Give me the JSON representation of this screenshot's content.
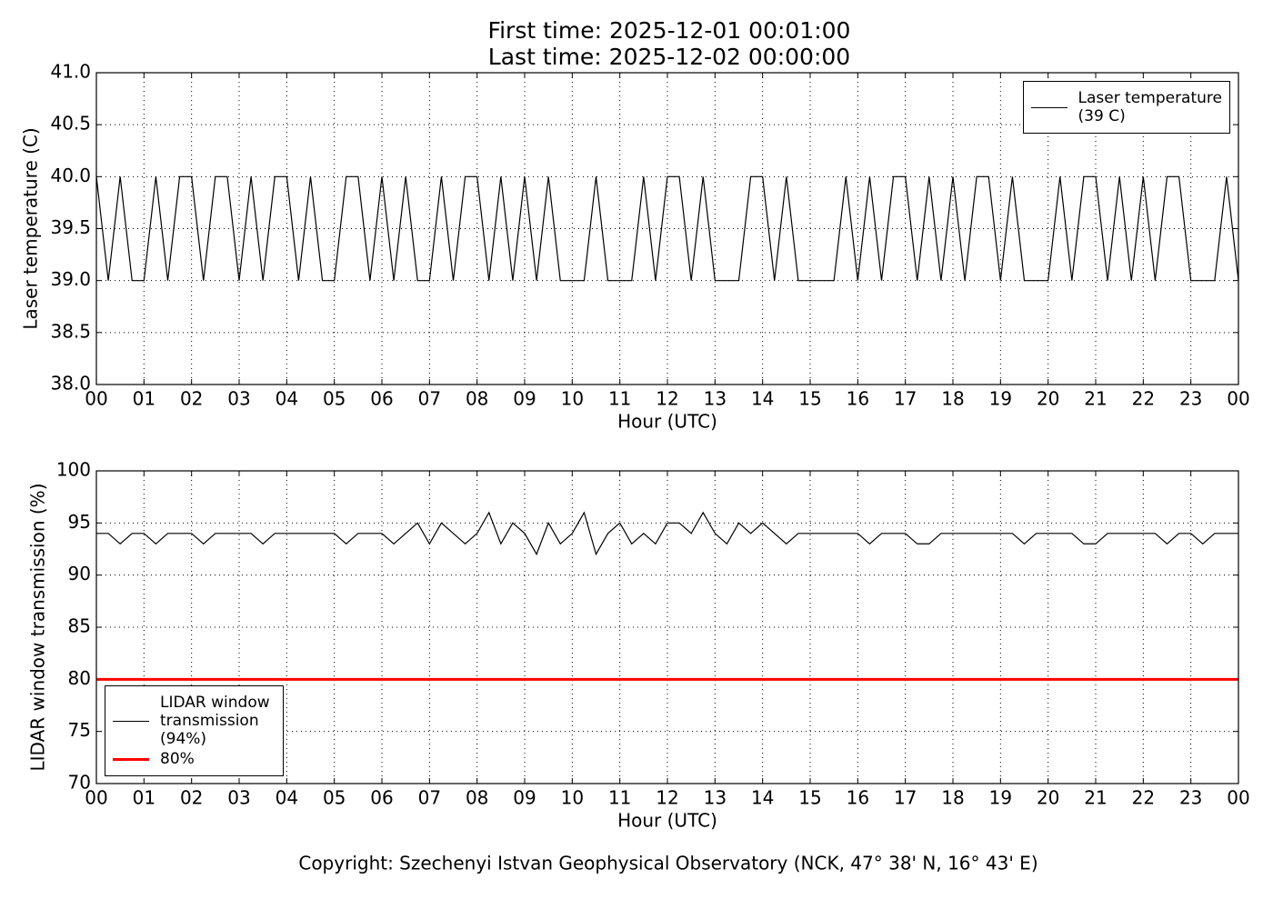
{
  "header": {
    "first_time": "First time: 2025-12-01 00:01:00",
    "last_time": "Last time: 2025-12-02 00:00:00"
  },
  "footer": {
    "copyright": "Copyright: Szechenyi Istvan Geophysical Observatory (NCK, 47° 38' N, 16° 43' E)"
  },
  "chart_data": [
    {
      "type": "line",
      "y_label": "Laser temperature (C)",
      "x_label": "Hour (UTC)",
      "grid": true,
      "legend": "upper right",
      "xlim": [
        0,
        24
      ],
      "ylim": [
        38,
        41
      ],
      "xticks": [
        {
          "value": 0,
          "label": "00"
        },
        {
          "value": 1,
          "label": "01"
        },
        {
          "value": 2,
          "label": "02"
        },
        {
          "value": 3,
          "label": "03"
        },
        {
          "value": 4,
          "label": "04"
        },
        {
          "value": 5,
          "label": "05"
        },
        {
          "value": 6,
          "label": "06"
        },
        {
          "value": 7,
          "label": "07"
        },
        {
          "value": 8,
          "label": "08"
        },
        {
          "value": 9,
          "label": "09"
        },
        {
          "value": 10,
          "label": "10"
        },
        {
          "value": 11,
          "label": "11"
        },
        {
          "value": 12,
          "label": "12"
        },
        {
          "value": 13,
          "label": "13"
        },
        {
          "value": 14,
          "label": "14"
        },
        {
          "value": 15,
          "label": "15"
        },
        {
          "value": 16,
          "label": "16"
        },
        {
          "value": 17,
          "label": "17"
        },
        {
          "value": 18,
          "label": "18"
        },
        {
          "value": 19,
          "label": "19"
        },
        {
          "value": 20,
          "label": "20"
        },
        {
          "value": 21,
          "label": "21"
        },
        {
          "value": 22,
          "label": "22"
        },
        {
          "value": 23,
          "label": "23"
        },
        {
          "value": 24,
          "label": "00"
        }
      ],
      "yticks": [
        {
          "value": 38,
          "label": "38.0"
        },
        38.5,
        {
          "value": 39,
          "label": "39.0"
        },
        39.5,
        {
          "value": 40,
          "label": "40.0"
        },
        40.5,
        {
          "value": 41,
          "label": "41.0"
        }
      ],
      "x": [
        0,
        0.25,
        0.5,
        0.75,
        1,
        1.25,
        1.5,
        1.75,
        2,
        2.25,
        2.5,
        2.75,
        3,
        3.25,
        3.5,
        3.75,
        4,
        4.25,
        4.5,
        4.75,
        5,
        5.25,
        5.5,
        5.75,
        6,
        6.25,
        6.5,
        6.75,
        7,
        7.25,
        7.5,
        7.75,
        8,
        8.25,
        8.5,
        8.75,
        9,
        9.25,
        9.5,
        9.75,
        10,
        10.25,
        10.5,
        10.75,
        11,
        11.25,
        11.5,
        11.75,
        12,
        12.25,
        12.5,
        12.75,
        13,
        13.25,
        13.5,
        13.75,
        14,
        14.25,
        14.5,
        14.75,
        15,
        15.25,
        15.5,
        15.75,
        16,
        16.25,
        16.5,
        16.75,
        17,
        17.25,
        17.5,
        17.75,
        18,
        18.25,
        18.5,
        18.75,
        19,
        19.25,
        19.5,
        19.75,
        20,
        20.25,
        20.5,
        20.75,
        21,
        21.25,
        21.5,
        21.75,
        22,
        22.25,
        22.5,
        22.75,
        23,
        23.25,
        23.5,
        23.75,
        24
      ],
      "series": [
        {
          "name": "Laser temperature\n(39 C)",
          "color": "#000000",
          "values": [
            40,
            39,
            40,
            39,
            39,
            40,
            39,
            40,
            40,
            39,
            40,
            40,
            39,
            40,
            39,
            40,
            40,
            39,
            40,
            39,
            39,
            40,
            40,
            39,
            40,
            39,
            40,
            39,
            39,
            40,
            39,
            40,
            40,
            39,
            40,
            39,
            40,
            39,
            40,
            39,
            39,
            39,
            40,
            39,
            39,
            39,
            40,
            39,
            40,
            40,
            39,
            40,
            39,
            39,
            39,
            40,
            40,
            39,
            40,
            39,
            39,
            39,
            39,
            40,
            39,
            40,
            39,
            40,
            40,
            39,
            40,
            39,
            40,
            39,
            40,
            40,
            39,
            40,
            39,
            39,
            39,
            40,
            39,
            40,
            40,
            39,
            40,
            39,
            40,
            39,
            40,
            40,
            39,
            39,
            39,
            40,
            39
          ]
        }
      ]
    },
    {
      "type": "line",
      "y_label": "LIDAR window transmission (%)",
      "x_label": "Hour (UTC)",
      "grid": true,
      "legend": "lower left",
      "xlim": [
        0,
        24
      ],
      "ylim": [
        70,
        100
      ],
      "xticks": [
        {
          "value": 0,
          "label": "00"
        },
        {
          "value": 1,
          "label": "01"
        },
        {
          "value": 2,
          "label": "02"
        },
        {
          "value": 3,
          "label": "03"
        },
        {
          "value": 4,
          "label": "04"
        },
        {
          "value": 5,
          "label": "05"
        },
        {
          "value": 6,
          "label": "06"
        },
        {
          "value": 7,
          "label": "07"
        },
        {
          "value": 8,
          "label": "08"
        },
        {
          "value": 9,
          "label": "09"
        },
        {
          "value": 10,
          "label": "10"
        },
        {
          "value": 11,
          "label": "11"
        },
        {
          "value": 12,
          "label": "12"
        },
        {
          "value": 13,
          "label": "13"
        },
        {
          "value": 14,
          "label": "14"
        },
        {
          "value": 15,
          "label": "15"
        },
        {
          "value": 16,
          "label": "16"
        },
        {
          "value": 17,
          "label": "17"
        },
        {
          "value": 18,
          "label": "18"
        },
        {
          "value": 19,
          "label": "19"
        },
        {
          "value": 20,
          "label": "20"
        },
        {
          "value": 21,
          "label": "21"
        },
        {
          "value": 22,
          "label": "22"
        },
        {
          "value": 23,
          "label": "23"
        },
        {
          "value": 24,
          "label": "00"
        }
      ],
      "yticks": [
        70,
        75,
        80,
        85,
        90,
        95,
        100
      ],
      "x": [
        0,
        0.25,
        0.5,
        0.75,
        1,
        1.25,
        1.5,
        1.75,
        2,
        2.25,
        2.5,
        2.75,
        3,
        3.25,
        3.5,
        3.75,
        4,
        4.25,
        4.5,
        4.75,
        5,
        5.25,
        5.5,
        5.75,
        6,
        6.25,
        6.5,
        6.75,
        7,
        7.25,
        7.5,
        7.75,
        8,
        8.25,
        8.5,
        8.75,
        9,
        9.25,
        9.5,
        9.75,
        10,
        10.25,
        10.5,
        10.75,
        11,
        11.25,
        11.5,
        11.75,
        12,
        12.25,
        12.5,
        12.75,
        13,
        13.25,
        13.5,
        13.75,
        14,
        14.25,
        14.5,
        14.75,
        15,
        15.25,
        15.5,
        15.75,
        16,
        16.25,
        16.5,
        16.75,
        17,
        17.25,
        17.5,
        17.75,
        18,
        18.25,
        18.5,
        18.75,
        19,
        19.25,
        19.5,
        19.75,
        20,
        20.25,
        20.5,
        20.75,
        21,
        21.25,
        21.5,
        21.75,
        22,
        22.25,
        22.5,
        22.75,
        23,
        23.25,
        23.5,
        23.75,
        24
      ],
      "series": [
        {
          "name": "LIDAR window\ntransmission\n(94%)",
          "color": "#000000",
          "values": [
            94,
            94,
            93,
            94,
            94,
            93,
            94,
            94,
            94,
            93,
            94,
            94,
            94,
            94,
            93,
            94,
            94,
            94,
            94,
            94,
            94,
            93,
            94,
            94,
            94,
            93,
            94,
            95,
            93,
            95,
            94,
            93,
            94,
            96,
            93,
            95,
            94,
            92,
            95,
            93,
            94,
            96,
            92,
            94,
            95,
            93,
            94,
            93,
            95,
            95,
            94,
            96,
            94,
            93,
            95,
            94,
            95,
            94,
            93,
            94,
            94,
            94,
            94,
            94,
            94,
            93,
            94,
            94,
            94,
            93,
            93,
            94,
            94,
            94,
            94,
            94,
            94,
            94,
            93,
            94,
            94,
            94,
            94,
            93,
            93,
            94,
            94,
            94,
            94,
            94,
            93,
            94,
            94,
            93,
            94,
            94,
            94
          ]
        }
      ],
      "hlines": [
        {
          "name": "80%",
          "value": 80,
          "color": "#ff0000"
        }
      ]
    }
  ]
}
